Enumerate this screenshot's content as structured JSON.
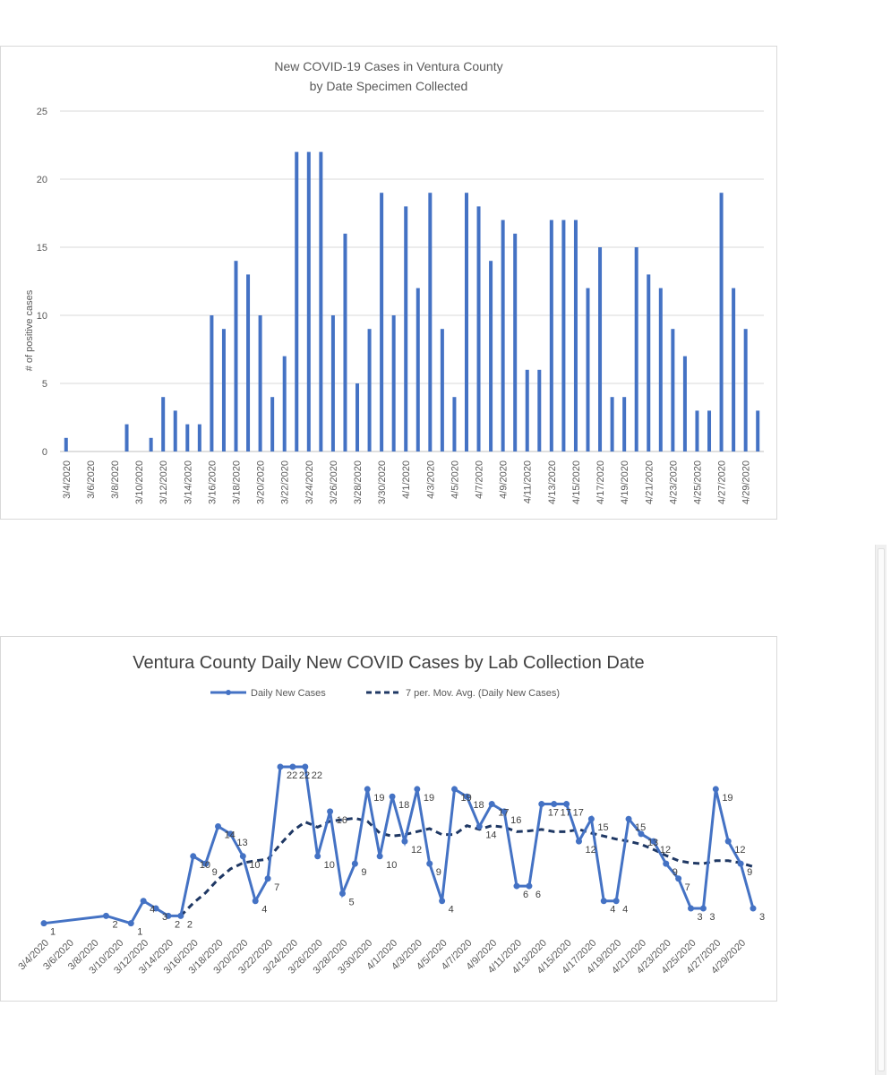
{
  "chart_data": [
    {
      "type": "bar",
      "title": [
        "New COVID-19 Cases in Ventura County",
        "by Date Specimen Collected"
      ],
      "ylabel": "# of positive cases",
      "xlabel": "",
      "ylim": [
        0,
        25
      ],
      "yticks": [
        0,
        5,
        10,
        15,
        20,
        25
      ],
      "grid": true,
      "color": "#4472C4",
      "x": [
        "3/4/2020",
        "3/5/2020",
        "3/6/2020",
        "3/7/2020",
        "3/8/2020",
        "3/9/2020",
        "3/10/2020",
        "3/11/2020",
        "3/12/2020",
        "3/13/2020",
        "3/14/2020",
        "3/15/2020",
        "3/16/2020",
        "3/17/2020",
        "3/18/2020",
        "3/19/2020",
        "3/20/2020",
        "3/21/2020",
        "3/22/2020",
        "3/23/2020",
        "3/24/2020",
        "3/25/2020",
        "3/26/2020",
        "3/27/2020",
        "3/28/2020",
        "3/29/2020",
        "3/30/2020",
        "3/31/2020",
        "4/1/2020",
        "4/2/2020",
        "4/3/2020",
        "4/4/2020",
        "4/5/2020",
        "4/6/2020",
        "4/7/2020",
        "4/8/2020",
        "4/9/2020",
        "4/10/2020",
        "4/11/2020",
        "4/12/2020",
        "4/13/2020",
        "4/14/2020",
        "4/15/2020",
        "4/16/2020",
        "4/17/2020",
        "4/18/2020",
        "4/19/2020",
        "4/20/2020",
        "4/21/2020",
        "4/22/2020",
        "4/23/2020",
        "4/24/2020",
        "4/25/2020",
        "4/26/2020",
        "4/27/2020",
        "4/28/2020",
        "4/29/2020",
        "4/30/2020"
      ],
      "values": [
        1,
        0,
        0,
        0,
        0,
        2,
        0,
        1,
        4,
        3,
        2,
        2,
        10,
        9,
        14,
        13,
        10,
        4,
        7,
        22,
        22,
        22,
        10,
        16,
        5,
        9,
        19,
        10,
        18,
        12,
        19,
        9,
        4,
        19,
        18,
        14,
        17,
        16,
        6,
        6,
        17,
        17,
        17,
        12,
        15,
        4,
        4,
        15,
        13,
        12,
        9,
        7,
        3,
        3,
        19,
        12,
        9,
        3
      ],
      "tick_labels": [
        "3/4/2020",
        "3/6/2020",
        "3/8/2020",
        "3/10/2020",
        "3/12/2020",
        "3/14/2020",
        "3/16/2020",
        "3/18/2020",
        "3/20/2020",
        "3/22/2020",
        "3/24/2020",
        "3/26/2020",
        "3/28/2020",
        "3/30/2020",
        "4/1/2020",
        "4/3/2020",
        "4/5/2020",
        "4/7/2020",
        "4/9/2020",
        "4/11/2020",
        "4/13/2020",
        "4/15/2020",
        "4/17/2020",
        "4/19/2020",
        "4/21/2020",
        "4/23/2020",
        "4/25/2020",
        "4/27/2020",
        "4/29/2020"
      ]
    },
    {
      "type": "line",
      "title": "Ventura County Daily New COVID Cases by Lab Collection Date",
      "legend_position": "top",
      "grid": false,
      "x": [
        "3/4/2020",
        "3/9/2020",
        "3/11/2020",
        "3/12/2020",
        "3/13/2020",
        "3/14/2020",
        "3/15/2020",
        "3/16/2020",
        "3/17/2020",
        "3/18/2020",
        "3/19/2020",
        "3/20/2020",
        "3/21/2020",
        "3/22/2020",
        "3/23/2020",
        "3/24/2020",
        "3/25/2020",
        "3/26/2020",
        "3/27/2020",
        "3/28/2020",
        "3/29/2020",
        "3/30/2020",
        "3/31/2020",
        "4/1/2020",
        "4/2/2020",
        "4/3/2020",
        "4/4/2020",
        "4/5/2020",
        "4/6/2020",
        "4/7/2020",
        "4/8/2020",
        "4/9/2020",
        "4/10/2020",
        "4/11/2020",
        "4/12/2020",
        "4/13/2020",
        "4/14/2020",
        "4/15/2020",
        "4/16/2020",
        "4/17/2020",
        "4/18/2020",
        "4/19/2020",
        "4/20/2020",
        "4/21/2020",
        "4/22/2020",
        "4/23/2020",
        "4/24/2020",
        "4/25/2020",
        "4/26/2020",
        "4/27/2020",
        "4/28/2020",
        "4/29/2020",
        "4/30/2020"
      ],
      "series": [
        {
          "name": "Daily New Cases",
          "style": "solid-with-markers",
          "color": "#4472C4",
          "values": [
            1,
            2,
            1,
            4,
            3,
            2,
            2,
            10,
            9,
            14,
            13,
            10,
            4,
            7,
            22,
            22,
            22,
            10,
            16,
            5,
            9,
            19,
            10,
            18,
            12,
            19,
            9,
            4,
            19,
            18,
            14,
            17,
            16,
            6,
            6,
            17,
            17,
            17,
            12,
            15,
            4,
            4,
            15,
            13,
            12,
            9,
            7,
            3,
            3,
            19,
            12,
            9,
            3
          ],
          "data_labels": [
            "1",
            "2",
            "1",
            "4",
            "3",
            "2",
            "2",
            "10",
            "9",
            "14",
            "13",
            "10",
            "4",
            "7",
            "22",
            "22",
            "22",
            "10",
            "16",
            "5",
            "9",
            "19",
            "10",
            "18",
            "12",
            "19",
            "9",
            "4",
            "19",
            "18",
            "14",
            "17",
            "16",
            "6",
            "6",
            "17",
            "17",
            "17",
            "12",
            "15",
            "4",
            "4",
            "15",
            "13",
            "12",
            "9",
            "7",
            "3",
            "3",
            "19",
            "12",
            "9",
            "3"
          ]
        },
        {
          "name": "7 per. Mov. Avg. (Daily New Cases)",
          "style": "dashed",
          "color": "#1F3864",
          "x": [
            "3/15/2020",
            "3/16/2020",
            "3/17/2020",
            "3/18/2020",
            "3/19/2020",
            "3/20/2020",
            "3/21/2020",
            "3/22/2020",
            "3/23/2020",
            "3/24/2020",
            "3/25/2020",
            "3/26/2020",
            "3/27/2020",
            "3/28/2020",
            "3/29/2020",
            "3/30/2020",
            "3/31/2020",
            "4/1/2020",
            "4/2/2020",
            "4/3/2020",
            "4/4/2020",
            "4/5/2020",
            "4/6/2020",
            "4/7/2020",
            "4/8/2020",
            "4/9/2020",
            "4/10/2020",
            "4/11/2020",
            "4/12/2020",
            "4/13/2020",
            "4/14/2020",
            "4/15/2020",
            "4/16/2020",
            "4/17/2020",
            "4/18/2020",
            "4/19/2020",
            "4/20/2020",
            "4/21/2020",
            "4/22/2020",
            "4/23/2020",
            "4/24/2020",
            "4/25/2020",
            "4/26/2020",
            "4/27/2020",
            "4/28/2020",
            "4/29/2020",
            "4/30/2020"
          ],
          "values": [
            2.0,
            3.7,
            5.1,
            6.9,
            8.3,
            9.1,
            9.4,
            9.6,
            11.6,
            13.4,
            14.6,
            13.9,
            14.7,
            14.9,
            15.1,
            14.7,
            13.1,
            12.7,
            12.9,
            13.3,
            13.7,
            12.9,
            12.9,
            14.1,
            13.6,
            14.1,
            13.9,
            13.3,
            13.4,
            13.6,
            13.3,
            13.3,
            13.6,
            13.1,
            12.7,
            12.3,
            12.0,
            11.6,
            10.9,
            10.1,
            9.4,
            9.1,
            9.0,
            9.4,
            9.4,
            9.1,
            8.6
          ]
        }
      ],
      "ylim": [
        0,
        25
      ],
      "tick_labels": [
        "3/4/2020",
        "3/6/2020",
        "3/8/2020",
        "3/10/2020",
        "3/12/2020",
        "3/14/2020",
        "3/16/2020",
        "3/18/2020",
        "3/20/2020",
        "3/22/2020",
        "3/24/2020",
        "3/26/2020",
        "3/28/2020",
        "3/30/2020",
        "4/1/2020",
        "4/3/2020",
        "4/5/2020",
        "4/7/2020",
        "4/9/2020",
        "4/11/2020",
        "4/13/2020",
        "4/15/2020",
        "4/17/2020",
        "4/19/2020",
        "4/21/2020",
        "4/23/2020",
        "4/25/2020",
        "4/27/2020",
        "4/29/2020"
      ]
    }
  ]
}
